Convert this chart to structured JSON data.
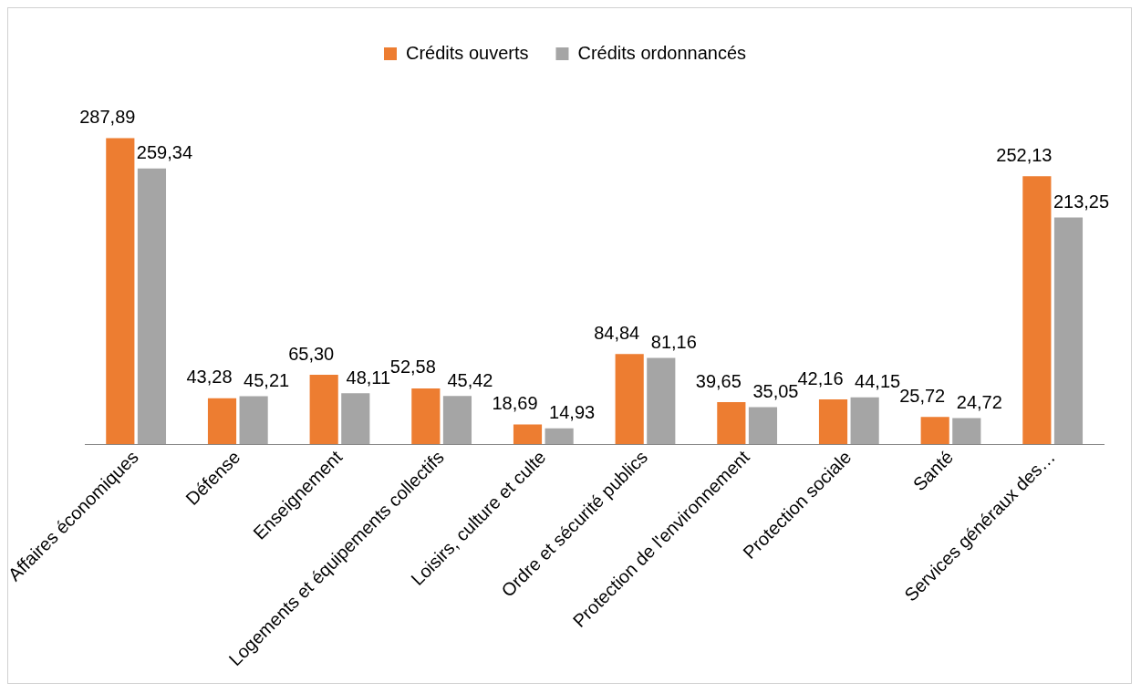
{
  "chart_data": {
    "type": "bar",
    "categories": [
      "Affaires économiques",
      "Défense",
      "Enseignement",
      "Logements et équipements collectifs",
      "Loisirs, culture et culte",
      "Ordre et sécurité publics",
      "Protection de l'environnement",
      "Protection sociale",
      "Santé",
      "Services généraux des…"
    ],
    "series": [
      {
        "name": "Crédits ouverts",
        "color": "#ed7d31",
        "values": [
          287.89,
          43.28,
          65.3,
          52.58,
          18.69,
          84.84,
          39.65,
          42.16,
          25.72,
          252.13
        ],
        "value_labels": [
          "287,89",
          "43,28",
          "65,30",
          "52,58",
          "18,69",
          "84,84",
          "39,65",
          "42,16",
          "25,72",
          "252,13"
        ]
      },
      {
        "name": "Crédits ordonnancés",
        "color": "#a5a5a5",
        "values": [
          259.34,
          45.21,
          48.11,
          45.42,
          14.93,
          81.16,
          35.05,
          44.15,
          24.72,
          213.25
        ],
        "value_labels": [
          "259,34",
          "45,21",
          "48,11",
          "45,42",
          "14,93",
          "81,16",
          "35,05",
          "44,15",
          "24,72",
          "213,25"
        ]
      }
    ],
    "legend": "top",
    "grid": false
  }
}
